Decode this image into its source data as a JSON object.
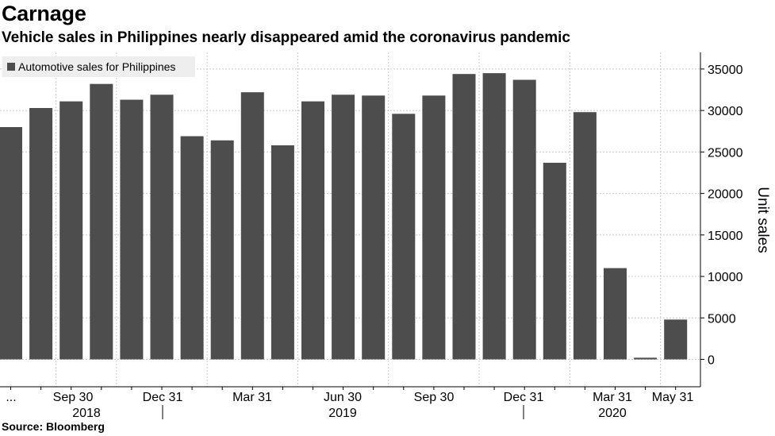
{
  "header": {
    "title": "Carnage",
    "subtitle": "Vehicle sales in Philippines nearly disappeared amid the coronavirus pandemic"
  },
  "footer": {
    "source": "Source: Bloomberg"
  },
  "chart_data": {
    "type": "bar",
    "legend": {
      "label": "Automotive sales for Philippines",
      "placement": "top-left"
    },
    "ylabel": "Unit sales",
    "ylim": [
      -3300,
      37000
    ],
    "y_ticks": [
      0,
      5000,
      10000,
      15000,
      20000,
      25000,
      30000,
      35000
    ],
    "y_axis_side": "right",
    "grid": true,
    "bar_color": "#4d4d4d",
    "x_tick_labels": [
      "...",
      "Sep 30",
      "Dec 31",
      "Mar 31",
      "Jun 30",
      "Sep 30",
      "Dec 31",
      "Mar 31",
      "May 31"
    ],
    "x_year_labels": [
      "2018",
      "2019",
      "2020"
    ],
    "values": [
      28000,
      30300,
      31100,
      33200,
      31300,
      31900,
      26900,
      26400,
      32200,
      25800,
      31100,
      31900,
      31800,
      29600,
      31800,
      34400,
      34500,
      33700,
      23700,
      29800,
      11000,
      200,
      4800
    ]
  }
}
